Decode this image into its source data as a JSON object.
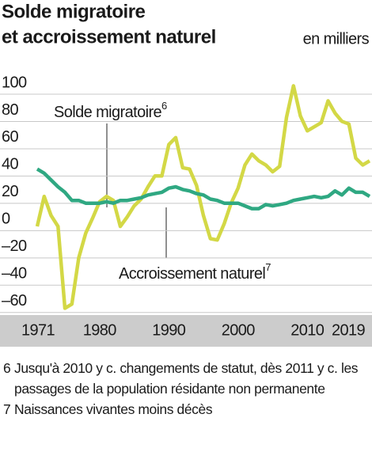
{
  "chart_data": {
    "type": "line",
    "title": [
      "Solde migratoire",
      "et accroissement naturel"
    ],
    "subtitle": "en milliers",
    "x": [
      1971,
      1972,
      1973,
      1974,
      1975,
      1976,
      1977,
      1978,
      1979,
      1980,
      1981,
      1982,
      1983,
      1984,
      1985,
      1986,
      1987,
      1988,
      1989,
      1990,
      1991,
      1992,
      1993,
      1994,
      1995,
      1996,
      1997,
      1998,
      1999,
      2000,
      2001,
      2002,
      2003,
      2004,
      2005,
      2006,
      2007,
      2008,
      2009,
      2010,
      2011,
      2012,
      2013,
      2014,
      2015,
      2016,
      2017,
      2018,
      2019
    ],
    "series": [
      {
        "name": "Solde migratoire",
        "footnote_ref": "6",
        "color": "#d3d846",
        "values": [
          -5,
          17,
          3,
          -5,
          -65,
          -62,
          -28,
          -10,
          1,
          13,
          17,
          14,
          -5,
          2,
          10,
          15,
          24,
          32,
          32,
          55,
          60,
          38,
          37,
          25,
          3,
          -14,
          -15,
          -3,
          12,
          23,
          40,
          48,
          43,
          40,
          35,
          39,
          75,
          98,
          76,
          65,
          68,
          71,
          87,
          78,
          72,
          70,
          45,
          40,
          43
        ]
      },
      {
        "name": "Accroissement naturel",
        "footnote_ref": "7",
        "color": "#2fa882",
        "values": [
          37,
          34,
          29,
          24,
          20,
          14,
          14,
          12,
          12,
          12,
          13,
          12,
          14,
          14,
          15,
          16,
          18,
          19,
          20,
          23,
          24,
          22,
          21,
          19,
          18,
          15,
          14,
          12,
          12,
          12,
          10,
          8,
          8,
          11,
          10,
          11,
          12,
          14,
          15,
          16,
          17,
          16,
          17,
          21,
          18,
          23,
          20,
          20,
          17
        ]
      }
    ],
    "xlim": [
      1971,
      2019
    ],
    "xticks": [
      1971,
      1980,
      1990,
      2000,
      2010,
      2019
    ],
    "ylim": [
      -70,
      100
    ],
    "yticks": [
      100,
      80,
      60,
      40,
      20,
      0,
      {
        "value": -20,
        "label": "–20"
      },
      {
        "value": -40,
        "label": "–40"
      },
      {
        "value": -60,
        "label": "–60"
      }
    ],
    "grid": true,
    "footnotes": [
      {
        "number": "6",
        "text": "Jusqu'à 2010 y c. changements de statut, dès 2011 y c. les passages de la population résidante non permanente"
      },
      {
        "number": "7",
        "text": "Naissances vivantes moins décès"
      }
    ]
  }
}
